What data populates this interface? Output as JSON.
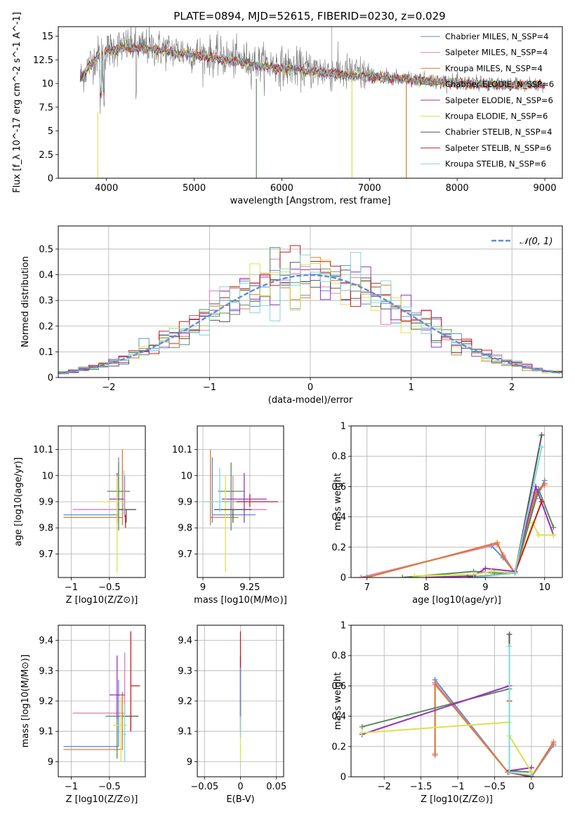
{
  "figure": {
    "title": "PLATE=0894, MJD=52615, FIBERID=0230, z=0.029"
  },
  "series_styles": [
    {
      "name": "Chabrier MILES, N$_{SSP}$=4",
      "color": "#5b8ed6"
    },
    {
      "name": "Salpeter MILES, N$_{SSP}$=4",
      "color": "#e37ab8"
    },
    {
      "name": "Kroupa MILES, N$_{SSP}$=4",
      "color": "#e07b2d"
    },
    {
      "name": "Chabrier ELODIE, N$_{SSP}$=6",
      "color": "#5a8a5a"
    },
    {
      "name": "Salpeter ELODIE, N$_{SSP}$=6",
      "color": "#9b30c0"
    },
    {
      "name": "Kroupa ELODIE, N$_{SSP}$=6",
      "color": "#d9e34a"
    },
    {
      "name": "Chabrier STELIB, N$_{SSP}$=4",
      "color": "#555555"
    },
    {
      "name": "Salpeter STELIB, N$_{SSP}$=6",
      "color": "#c21e1e"
    },
    {
      "name": "Kroupa STELIB, N$_{SSP}$=6",
      "color": "#7fd9d9"
    }
  ],
  "legend": {
    "spectrum": [
      "Chabrier MILES, N_SSP=4",
      "Salpeter MILES, N_SSP=4",
      "Kroupa MILES, N_SSP=4",
      "Chabrier ELODIE, N_SSP=6",
      "Salpeter ELODIE, N_SSP=6",
      "Kroupa ELODIE, N_SSP=6",
      "Chabrier STELIB, N_SSP=4",
      "Salpeter STELIB, N_SSP=6",
      "Kroupa STELIB, N_SSP=6"
    ],
    "normal": "𝒩(0, 1)"
  },
  "chart_data": [
    {
      "id": "spectrum",
      "type": "line",
      "title": "PLATE=0894, MJD=52615, FIBERID=0230, z=0.029",
      "xlabel": "wavelength [Angstrom, rest frame]",
      "ylabel": "Flux [f_λ 10^-17 erg cm^-2 s^-1 A^-1]",
      "xlim": [
        3450,
        9200
      ],
      "ylim": [
        0,
        16
      ],
      "xticks": [
        4000,
        5000,
        6000,
        7000,
        8000,
        9000
      ],
      "yticks": [
        0.0,
        2.5,
        5.0,
        7.5,
        10.0,
        12.5,
        15.0
      ],
      "grid": false,
      "legend_position": "top-right",
      "envelope": {
        "x": [
          3700,
          3800,
          3900,
          4000,
          4200,
          4500,
          5000,
          5500,
          6000,
          6500,
          7000,
          7500,
          8000,
          8500,
          9000
        ],
        "y": [
          10.5,
          12.0,
          13.0,
          13.5,
          14.0,
          13.8,
          13.2,
          12.5,
          11.8,
          11.3,
          10.9,
          10.6,
          10.2,
          10.0,
          10.0
        ]
      }
    },
    {
      "id": "residuals",
      "type": "line",
      "xlabel": "(data-model)/error",
      "ylabel": "Normed distribution",
      "xlim": [
        -2.5,
        2.5
      ],
      "ylim": [
        0,
        0.59
      ],
      "xticks": [
        -2,
        -1,
        0,
        1,
        2
      ],
      "yticks": [
        0.0,
        0.1,
        0.2,
        0.3,
        0.4,
        0.5
      ],
      "grid": true,
      "legend_position": "top-right",
      "normal": {
        "mean": 0,
        "sigma": 1
      }
    },
    {
      "id": "age-vs-Z",
      "type": "scatter",
      "xlabel": "Z [log10(Z/Z⊙)]",
      "ylabel": "age [log10(age/yr)]",
      "xlim": [
        -1.17,
        -0.03
      ],
      "ylim": [
        9.61,
        10.19
      ],
      "xticks": [
        -1.0,
        -0.5
      ],
      "yticks": [
        9.7,
        9.8,
        9.9,
        10.0,
        10.1
      ],
      "grid": true,
      "points": [
        {
          "series": 0,
          "x": -0.38,
          "y": 9.85,
          "xerr": [
            0.72,
            0.0
          ],
          "yerr": [
            0.03,
            0.22
          ]
        },
        {
          "series": 1,
          "x": -0.3,
          "y": 9.87,
          "xerr": [
            0.68,
            0.0
          ],
          "yerr": [
            0.03,
            0.13
          ]
        },
        {
          "series": 2,
          "x": -0.33,
          "y": 9.84,
          "xerr": [
            0.77,
            0.0
          ],
          "yerr": [
            0.03,
            0.26
          ]
        },
        {
          "series": 3,
          "x": -0.38,
          "y": 9.94,
          "xerr": [
            0.15,
            0.15
          ],
          "yerr": [
            0.15,
            0.11
          ]
        },
        {
          "series": 4,
          "x": -0.4,
          "y": 9.91,
          "xerr": [
            0.1,
            0.1
          ],
          "yerr": [
            0.09,
            0.1
          ]
        },
        {
          "series": 5,
          "x": -0.4,
          "y": 9.9,
          "xerr": [
            0.25,
            0.08
          ],
          "yerr": [
            0.27,
            0.1
          ]
        },
        {
          "series": 6,
          "x": -0.28,
          "y": 9.87,
          "xerr": [
            0.1,
            0.13
          ],
          "yerr": [
            0.05,
            0.0
          ]
        },
        {
          "series": 7,
          "x": -0.29,
          "y": 9.82,
          "xerr": [
            0.0,
            0.0
          ],
          "yerr": [
            0.02,
            0.03
          ]
        },
        {
          "series": 8,
          "x": -0.31,
          "y": 9.89,
          "xerr": [
            0.02,
            0.02
          ],
          "yerr": [
            0.04,
            0.13
          ]
        }
      ]
    },
    {
      "id": "age-vs-mass",
      "type": "scatter",
      "xlabel": "mass [log10(M/M⊙)]",
      "ylabel": "",
      "xlim": [
        8.97,
        9.43
      ],
      "ylim": [
        9.61,
        10.19
      ],
      "xticks": [
        9.0,
        9.25
      ],
      "yticks": [
        9.7,
        9.8,
        9.9,
        10.0,
        10.1
      ],
      "grid": true,
      "points": [
        {
          "series": 0,
          "x": 9.05,
          "y": 9.85,
          "xerr": [
            0.0,
            0.23
          ],
          "yerr": [
            0.03,
            0.22
          ]
        },
        {
          "series": 1,
          "x": 9.16,
          "y": 9.87,
          "xerr": [
            0.0,
            0.18
          ],
          "yerr": [
            0.03,
            0.13
          ]
        },
        {
          "series": 2,
          "x": 9.04,
          "y": 9.84,
          "xerr": [
            0.0,
            0.15
          ],
          "yerr": [
            0.03,
            0.26
          ]
        },
        {
          "series": 3,
          "x": 9.15,
          "y": 9.94,
          "xerr": [
            0.07,
            0.07
          ],
          "yerr": [
            0.15,
            0.11
          ]
        },
        {
          "series": 4,
          "x": 9.22,
          "y": 9.91,
          "xerr": [
            0.12,
            0.12
          ],
          "yerr": [
            0.09,
            0.1
          ]
        },
        {
          "series": 5,
          "x": 9.12,
          "y": 9.9,
          "xerr": [
            0.12,
            0.1
          ],
          "yerr": [
            0.27,
            0.1
          ]
        },
        {
          "series": 6,
          "x": 9.16,
          "y": 9.87,
          "xerr": [
            0.1,
            0.1
          ],
          "yerr": [
            0.05,
            0.0
          ]
        },
        {
          "series": 7,
          "x": 9.25,
          "y": 9.9,
          "xerr": [
            0.15,
            0.15
          ],
          "yerr": [
            0.02,
            0.03
          ]
        },
        {
          "series": 8,
          "x": 9.09,
          "y": 9.9,
          "xerr": [
            0.09,
            0.09
          ],
          "yerr": [
            0.04,
            0.13
          ]
        }
      ]
    },
    {
      "id": "massweight-vs-age",
      "type": "line",
      "xlabel": "age [log10(age/yr)]",
      "ylabel": "mass weight",
      "xlim": [
        6.73,
        10.3
      ],
      "ylim": [
        0.0,
        1.0
      ],
      "xticks": [
        7,
        8,
        9,
        10
      ],
      "yticks": [
        0.0,
        0.2,
        0.4,
        0.6,
        0.8,
        1.0
      ],
      "grid": true,
      "series": [
        {
          "series": 0,
          "x": [
            6.9,
            9.1,
            9.3,
            9.5,
            9.85,
            10.0
          ],
          "y": [
            0.0,
            0.21,
            0.13,
            0.03,
            0.52,
            0.64
          ]
        },
        {
          "series": 1,
          "x": [
            6.9,
            9.2,
            9.3,
            9.5,
            9.85,
            10.0
          ],
          "y": [
            0.0,
            0.22,
            0.15,
            0.03,
            0.55,
            0.61
          ]
        },
        {
          "series": 2,
          "x": [
            7.0,
            9.2,
            9.3,
            9.5,
            9.85,
            10.0
          ],
          "y": [
            0.0,
            0.23,
            0.14,
            0.03,
            0.56,
            0.62
          ]
        },
        {
          "series": 3,
          "x": [
            7.6,
            8.8,
            9.15,
            9.5,
            9.9,
            10.15
          ],
          "y": [
            0.0,
            0.04,
            0.03,
            0.03,
            0.58,
            0.33
          ]
        },
        {
          "series": 4,
          "x": [
            8.0,
            8.8,
            9.0,
            9.5,
            9.85,
            10.15
          ],
          "y": [
            0.0,
            0.01,
            0.06,
            0.04,
            0.6,
            0.28
          ]
        },
        {
          "series": 5,
          "x": [
            7.8,
            8.8,
            9.1,
            9.5,
            9.8,
            9.9,
            10.15
          ],
          "y": [
            0.01,
            0.02,
            0.04,
            0.03,
            0.36,
            0.28,
            0.28
          ]
        },
        {
          "series": 6,
          "x": [
            8.7,
            9.5,
            9.95
          ],
          "y": [
            0.0,
            0.03,
            0.94
          ]
        },
        {
          "series": 7,
          "x": [
            8.8,
            9.5,
            9.95
          ],
          "y": [
            0.0,
            0.03,
            0.5
          ]
        },
        {
          "series": 8,
          "x": [
            8.8,
            9.5,
            9.95
          ],
          "y": [
            0.0,
            0.03,
            0.86
          ]
        }
      ]
    },
    {
      "id": "mass-vs-Z",
      "type": "scatter",
      "xlabel": "Z [log10(Z/Z⊙)]",
      "ylabel": "mass [log10(M/M⊙)]",
      "xlim": [
        -1.17,
        -0.03
      ],
      "ylim": [
        8.95,
        9.45
      ],
      "xticks": [
        -1.0,
        -0.5
      ],
      "yticks": [
        9.0,
        9.1,
        9.2,
        9.3,
        9.4
      ],
      "grid": true,
      "points": [
        {
          "series": 0,
          "x": -0.38,
          "y": 9.05,
          "xerr": [
            0.72,
            0.0
          ],
          "yerr": [
            0.0,
            0.22
          ]
        },
        {
          "series": 1,
          "x": -0.3,
          "y": 9.16,
          "xerr": [
            0.68,
            0.0
          ],
          "yerr": [
            0.0,
            0.2
          ]
        },
        {
          "series": 2,
          "x": -0.33,
          "y": 9.04,
          "xerr": [
            0.77,
            0.0
          ],
          "yerr": [
            0.0,
            0.19
          ]
        },
        {
          "series": 3,
          "x": -0.4,
          "y": 9.15,
          "xerr": [
            0.15,
            0.15
          ],
          "yerr": [
            0.14,
            0.07
          ]
        },
        {
          "series": 4,
          "x": -0.4,
          "y": 9.22,
          "xerr": [
            0.1,
            0.1
          ],
          "yerr": [
            0.08,
            0.13
          ]
        },
        {
          "series": 5,
          "x": -0.35,
          "y": 9.12,
          "xerr": [
            0.1,
            0.08
          ],
          "yerr": [
            0.12,
            0.1
          ]
        },
        {
          "series": 6,
          "x": -0.22,
          "y": 9.15,
          "xerr": [
            0.1,
            0.1
          ],
          "yerr": [
            0.05,
            0.0
          ]
        },
        {
          "series": 7,
          "x": -0.22,
          "y": 9.25,
          "xerr": [
            0.0,
            0.12
          ],
          "yerr": [
            0.15,
            0.18
          ]
        },
        {
          "series": 8,
          "x": -0.3,
          "y": 9.09,
          "xerr": [
            0.02,
            0.02
          ],
          "yerr": [
            0.09,
            0.1
          ]
        }
      ]
    },
    {
      "id": "mass-vs-EBV",
      "type": "scatter",
      "xlabel": "E(B-V)",
      "ylabel": "",
      "xlim": [
        -0.06,
        0.06
      ],
      "ylim": [
        8.95,
        9.45
      ],
      "xticks": [
        -0.05,
        0.0,
        0.05
      ],
      "yticks": [
        9.0,
        9.1,
        9.2,
        9.3,
        9.4
      ],
      "grid": true,
      "points": [
        {
          "series": 5,
          "x": 0.0,
          "y": 9.12,
          "xerr": [
            0.0,
            0.0
          ],
          "yerr": [
            0.12,
            0.1
          ]
        },
        {
          "series": 4,
          "x": 0.0,
          "y": 9.22,
          "xerr": [
            0.0,
            0.0
          ],
          "yerr": [
            0.08,
            0.13
          ]
        },
        {
          "series": 7,
          "x": 0.0,
          "y": 9.25,
          "xerr": [
            0.0,
            0.0
          ],
          "yerr": [
            0.15,
            0.18
          ]
        },
        {
          "series": 0,
          "x": 0.0,
          "y": 9.15,
          "xerr": [
            0.0,
            0.0
          ],
          "yerr": [
            0.0,
            0.16
          ]
        },
        {
          "series": 8,
          "x": 0.0,
          "y": 9.1,
          "xerr": [
            0.0,
            0.0
          ],
          "yerr": [
            0.02,
            0.05
          ]
        }
      ]
    },
    {
      "id": "massweight-vs-Z",
      "type": "line",
      "xlabel": "Z [log10(Z/Z⊙)]",
      "ylabel": "mass weight",
      "xlim": [
        -2.45,
        0.42
      ],
      "ylim": [
        0.0,
        1.0
      ],
      "xticks": [
        -2.0,
        -1.5,
        -1.0,
        -0.5,
        0.0
      ],
      "yticks": [
        0.0,
        0.2,
        0.4,
        0.6,
        0.8,
        1.0
      ],
      "grid": true,
      "series": [
        {
          "series": 0,
          "x": [
            -1.31,
            -1.31,
            -0.32,
            0.0,
            0.3
          ],
          "y": [
            0.15,
            0.64,
            0.03,
            0.0,
            0.21
          ]
        },
        {
          "series": 1,
          "x": [
            -1.31,
            -1.31,
            -0.32,
            0.0,
            0.3
          ],
          "y": [
            0.14,
            0.62,
            0.03,
            0.0,
            0.22
          ]
        },
        {
          "series": 2,
          "x": [
            -1.31,
            -1.31,
            -0.32,
            0.0,
            0.3
          ],
          "y": [
            0.15,
            0.61,
            0.03,
            0.0,
            0.23
          ]
        },
        {
          "series": 3,
          "x": [
            -2.3,
            -0.3,
            -0.3,
            0.0
          ],
          "y": [
            0.33,
            0.58,
            0.04,
            0.03
          ]
        },
        {
          "series": 4,
          "x": [
            -2.3,
            -0.3,
            -0.3,
            0.0
          ],
          "y": [
            0.28,
            0.6,
            0.04,
            0.06
          ]
        },
        {
          "series": 5,
          "x": [
            -2.3,
            -0.3,
            -0.3,
            0.0
          ],
          "y": [
            0.29,
            0.36,
            0.27,
            0.03
          ]
        },
        {
          "series": 6,
          "x": [
            -0.3,
            -0.3,
            0.0
          ],
          "y": [
            0.94,
            0.03,
            0.0
          ]
        },
        {
          "series": 7,
          "x": [
            -0.3,
            -0.3,
            0.0
          ],
          "y": [
            0.5,
            0.03,
            0.0
          ]
        },
        {
          "series": 8,
          "x": [
            -0.3,
            -0.3,
            0.0
          ],
          "y": [
            0.86,
            0.03,
            0.01
          ]
        }
      ]
    }
  ]
}
